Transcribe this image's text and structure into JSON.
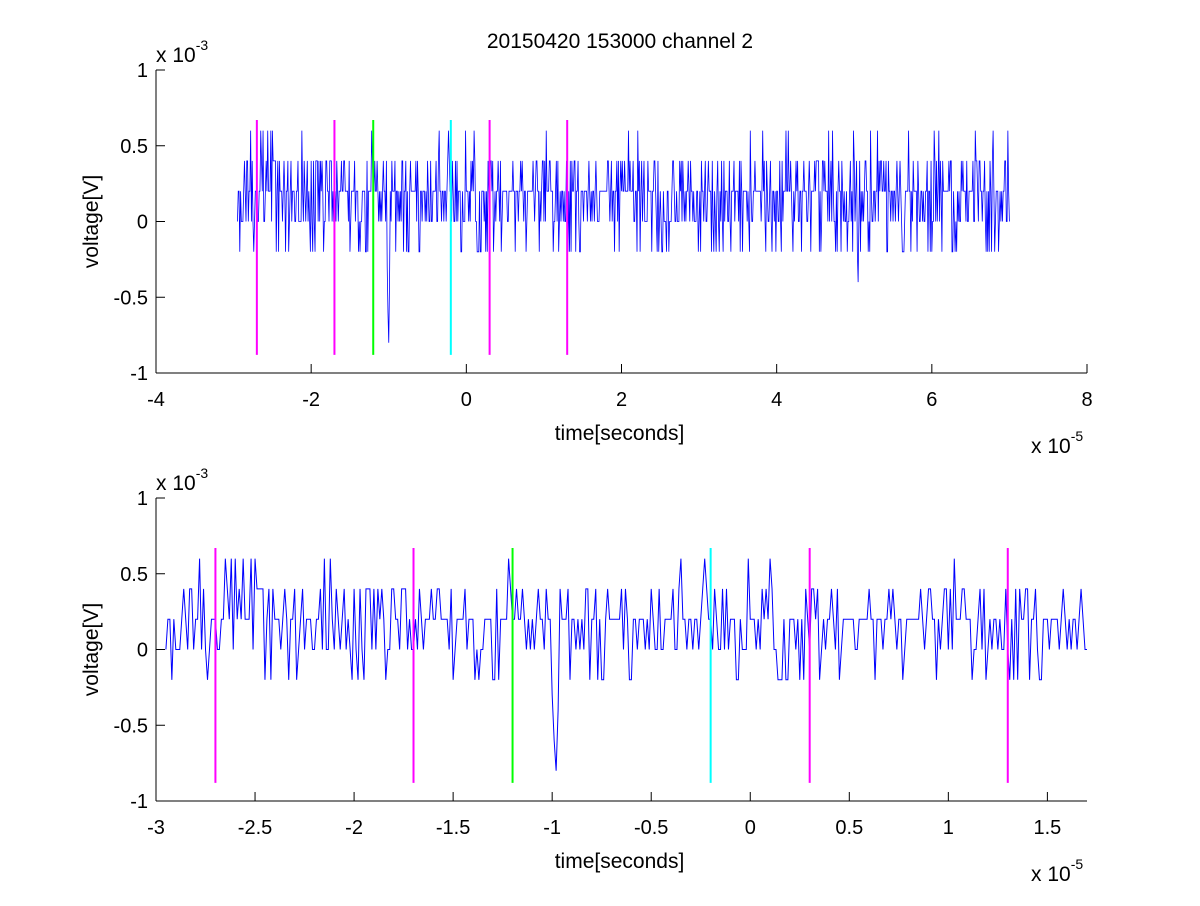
{
  "figure_title": "20150420 153000 channel 2",
  "chart_data": [
    {
      "type": "line",
      "title": "20150420 153000 channel 2",
      "xlabel": "time[seconds]",
      "ylabel": "voltage[V]",
      "x_exponent_label": "x 10",
      "x_exponent": "-5",
      "y_exponent_label": "x 10",
      "y_exponent": "-3",
      "xlim": [
        -4e-05,
        8e-05
      ],
      "ylim": [
        -0.001,
        0.001
      ],
      "xticks": [
        -4e-05,
        -2e-05,
        0,
        2e-05,
        4e-05,
        6e-05,
        8e-05
      ],
      "xtick_labels": [
        "-4",
        "-2",
        "0",
        "2",
        "4",
        "6",
        "8"
      ],
      "yticks": [
        0.001,
        0.0005,
        0,
        -0.0005,
        -0.001
      ],
      "ytick_labels": [
        "1",
        "0.5",
        "0",
        "-0.5",
        "-1"
      ],
      "grid": false,
      "series": [
        {
          "color": "#0000ff",
          "sample_step": 1e-07,
          "x_start": -2.95e-05,
          "x_end": 7e-05,
          "levels_mV": [
            -0.4,
            -0.2,
            0,
            0.2,
            0.4,
            0.6
          ],
          "notable_points": [
            {
              "x": -1e-05,
              "y": -0.0008
            },
            {
              "x": 5.05e-05,
              "y": -0.0004
            },
            {
              "x": -3.5e-06,
              "y": 0.0006
            }
          ]
        }
      ],
      "markers": [
        {
          "x": -2.7e-05,
          "y1": -0.00088,
          "y2": 0.00067,
          "color": "#ff00ff"
        },
        {
          "x": -1.7e-05,
          "y1": -0.00088,
          "y2": 0.00067,
          "color": "#ff00ff"
        },
        {
          "x": -1.2e-05,
          "y1": -0.00088,
          "y2": 0.00067,
          "color": "#00ff00"
        },
        {
          "x": -2e-06,
          "y1": -0.00088,
          "y2": 0.00067,
          "color": "#00ffff"
        },
        {
          "x": 3e-06,
          "y1": -0.00088,
          "y2": 0.00067,
          "color": "#ff00ff"
        },
        {
          "x": 1.3e-05,
          "y1": -0.00088,
          "y2": 0.00067,
          "color": "#ff00ff"
        }
      ]
    },
    {
      "type": "line",
      "title": "",
      "xlabel": "time[seconds]",
      "ylabel": "voltage[V]",
      "x_exponent_label": "x 10",
      "x_exponent": "-5",
      "y_exponent_label": "x 10",
      "y_exponent": "-3",
      "xlim": [
        -3e-05,
        1.7e-05
      ],
      "ylim": [
        -0.001,
        0.001
      ],
      "xticks": [
        -3e-05,
        -2.5e-05,
        -2e-05,
        -1.5e-05,
        -1e-05,
        -5e-06,
        0,
        5e-06,
        1e-05,
        1.5e-05
      ],
      "xtick_labels": [
        "-3",
        "-2.5",
        "-2",
        "-1.5",
        "-1",
        "-0.5",
        "0",
        "0.5",
        "1",
        "1.5"
      ],
      "yticks": [
        0.001,
        0.0005,
        0,
        -0.0005,
        -0.001
      ],
      "ytick_labels": [
        "1",
        "0.5",
        "0",
        "-0.5",
        "-1"
      ],
      "grid": false,
      "series": [
        {
          "color": "#0000ff",
          "sample_step": 1e-07,
          "x_start": -2.95e-05,
          "x_end": 1.7e-05,
          "levels_mV": [
            -0.4,
            -0.2,
            0,
            0.2,
            0.4,
            0.6
          ],
          "notable_points": [
            {
              "x": -9.8e-06,
              "y": -0.0008
            },
            {
              "x": -3.5e-06,
              "y": 0.0006
            },
            {
              "x": -2.6e-05,
              "y": 0.0006
            },
            {
              "x": -2.15e-05,
              "y": 0.0006
            }
          ]
        }
      ],
      "markers": [
        {
          "x": -2.7e-05,
          "y1": -0.00088,
          "y2": 0.00067,
          "color": "#ff00ff"
        },
        {
          "x": -1.7e-05,
          "y1": -0.00088,
          "y2": 0.00067,
          "color": "#ff00ff"
        },
        {
          "x": -1.2e-05,
          "y1": -0.00088,
          "y2": 0.00067,
          "color": "#00ff00"
        },
        {
          "x": -2e-06,
          "y1": -0.00088,
          "y2": 0.00067,
          "color": "#00ffff"
        },
        {
          "x": 3e-06,
          "y1": -0.00088,
          "y2": 0.00067,
          "color": "#ff00ff"
        },
        {
          "x": 1.3e-05,
          "y1": -0.00088,
          "y2": 0.00067,
          "color": "#ff00ff"
        }
      ]
    }
  ]
}
